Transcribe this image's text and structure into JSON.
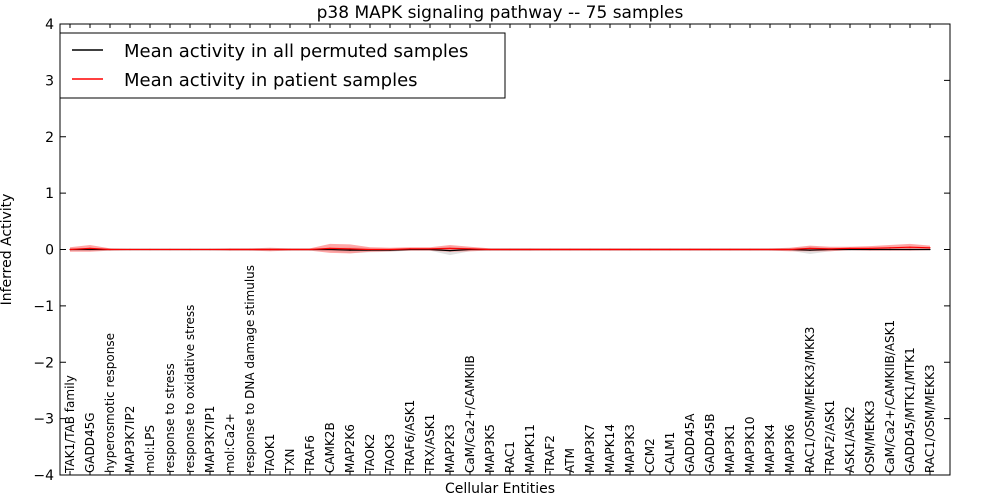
{
  "chart_data": {
    "type": "line",
    "title": "p38 MAPK signaling pathway -- 75 samples",
    "xlabel": "Cellular Entities",
    "ylabel": "Inferred Activity",
    "ylim": [
      -4,
      4
    ],
    "yticks": [
      -4,
      -3,
      -2,
      -1,
      0,
      1,
      2,
      3,
      4
    ],
    "ytick_labels": [
      "−4",
      "−3",
      "−2",
      "−1",
      "0",
      "1",
      "2",
      "3",
      "4"
    ],
    "grid": false,
    "legend_position": "top-left",
    "categories": [
      "TAK1/TAB family",
      "GADD45G",
      "hyperosmotic response",
      "MAP3K7IP2",
      "mol:LPS",
      "response to stress",
      "response to oxidative stress",
      "MAP3K7IP1",
      "mol:Ca2+",
      "response to DNA damage stimulus",
      "TAOK1",
      "TXN",
      "TRAF6",
      "CAMK2B",
      "MAP2K6",
      "TAOK2",
      "TAOK3",
      "TRAF6/ASK1",
      "TRX/ASK1",
      "MAP2K3",
      "CaM/Ca2+/CAMKIIB",
      "MAP3K5",
      "RAC1",
      "MAPK11",
      "TRAF2",
      "ATM",
      "MAP3K7",
      "MAPK14",
      "MAP3K3",
      "CCM2",
      "CALM1",
      "GADD45A",
      "GADD45B",
      "MAP3K1",
      "MAP3K10",
      "MAP3K4",
      "MAP3K6",
      "RAC1/OSM/MEKK3/MKK3",
      "TRAF2/ASK1",
      "ASK1/ASK2",
      "OSM/MEKK3",
      "CaM/Ca2+/CAMKIIB/ASK1",
      "GADD45/MTK1/MTK1",
      "RAC1/OSM/MEKK3"
    ],
    "series": [
      {
        "name": "Mean activity in all permuted samples",
        "color": "#000000",
        "band_color": "#bbbbbb",
        "values": [
          0,
          0,
          0,
          0,
          0,
          0,
          0,
          0,
          0,
          0,
          0,
          0,
          0,
          0,
          -0.01,
          -0.01,
          -0.01,
          0,
          0,
          -0.02,
          0,
          0,
          0,
          0,
          0,
          0,
          0,
          0,
          0,
          0,
          0,
          0,
          0,
          0,
          0,
          0,
          0,
          -0.01,
          0,
          0,
          0,
          0,
          0,
          0
        ],
        "band": [
          0.01,
          0.01,
          0.01,
          0.01,
          0.01,
          0.01,
          0.01,
          0.01,
          0.01,
          0.01,
          0.01,
          0.01,
          0.01,
          0.03,
          0.06,
          0.04,
          0.03,
          0.02,
          0.02,
          0.08,
          0.03,
          0.02,
          0.02,
          0.02,
          0.01,
          0.01,
          0.01,
          0.01,
          0.01,
          0.01,
          0.01,
          0.01,
          0.01,
          0.01,
          0.01,
          0.01,
          0.02,
          0.07,
          0.03,
          0.01,
          0.01,
          0.01,
          0.01,
          0.01
        ]
      },
      {
        "name": "Mean activity in patient samples",
        "color": "#ff0000",
        "band_color": "#ff8080",
        "values": [
          0,
          0.02,
          0,
          0,
          0,
          0,
          0,
          0,
          0,
          0,
          0,
          0,
          0,
          0.02,
          0.01,
          0,
          0,
          0.01,
          0.01,
          0.02,
          0.01,
          0,
          0,
          0,
          0,
          0,
          0,
          0,
          0,
          0,
          0,
          0,
          0,
          0,
          0,
          0,
          0,
          0.02,
          0.01,
          0.02,
          0.02,
          0.03,
          0.04,
          0.03
        ],
        "band": [
          0.04,
          0.06,
          0.02,
          0.01,
          0.01,
          0.01,
          0.01,
          0.01,
          0.02,
          0.02,
          0.03,
          0.02,
          0.02,
          0.08,
          0.08,
          0.04,
          0.03,
          0.03,
          0.03,
          0.06,
          0.04,
          0.02,
          0.02,
          0.02,
          0.02,
          0.02,
          0.02,
          0.02,
          0.02,
          0.02,
          0.02,
          0.02,
          0.02,
          0.02,
          0.02,
          0.02,
          0.03,
          0.05,
          0.04,
          0.03,
          0.04,
          0.05,
          0.06,
          0.04
        ]
      }
    ]
  }
}
